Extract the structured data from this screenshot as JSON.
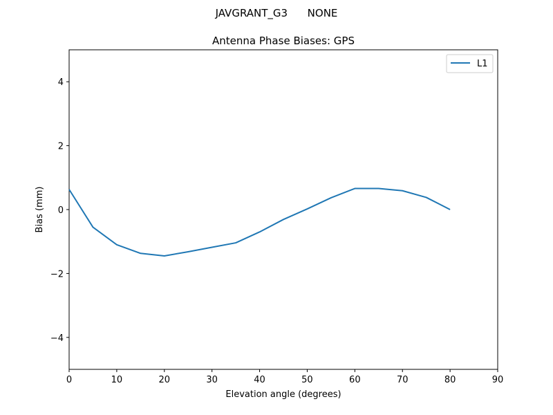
{
  "chart_data": {
    "type": "line",
    "suptitle": "JAVGRANT_G3      NONE",
    "title": "Antenna Phase Biases: GPS",
    "xlabel": "Elevation angle (degrees)",
    "ylabel": "Bias (mm)",
    "xlim": [
      0,
      90
    ],
    "ylim": [
      -5,
      5
    ],
    "xticks": [
      0,
      10,
      20,
      30,
      40,
      50,
      60,
      70,
      80,
      90
    ],
    "xtick_labels": [
      "0",
      "10",
      "20",
      "30",
      "40",
      "50",
      "60",
      "70",
      "80",
      "90"
    ],
    "yticks": [
      -4,
      -2,
      0,
      2,
      4
    ],
    "ytick_labels": [
      "−4",
      "−2",
      "0",
      "2",
      "4"
    ],
    "grid": false,
    "legend_position": "top-right",
    "x": [
      0,
      5,
      10,
      15,
      20,
      25,
      30,
      35,
      40,
      45,
      50,
      55,
      60,
      65,
      70,
      75,
      80
    ],
    "series": [
      {
        "name": "L1",
        "color": "#1f77b4",
        "values": [
          0.63,
          -0.55,
          -1.1,
          -1.37,
          -1.45,
          -1.32,
          -1.18,
          -1.04,
          -0.7,
          -0.31,
          0.02,
          0.37,
          0.66,
          0.66,
          0.59,
          0.38,
          0.0
        ]
      }
    ]
  }
}
